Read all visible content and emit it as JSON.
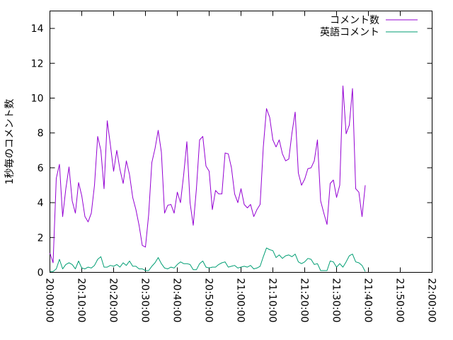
{
  "chart_data": {
    "type": "line",
    "title": "",
    "xlabel": "",
    "ylabel": "1秒毎のコメント数",
    "xlim": [
      0,
      120
    ],
    "ylim": [
      0,
      15
    ],
    "grid": false,
    "legend_position": "top-right",
    "x_ticks": [
      {
        "at": 0,
        "label": "20:00:00"
      },
      {
        "at": 10,
        "label": "20:10:00"
      },
      {
        "at": 20,
        "label": "20:20:00"
      },
      {
        "at": 30,
        "label": "20:30:00"
      },
      {
        "at": 40,
        "label": "20:40:00"
      },
      {
        "at": 50,
        "label": "20:50:00"
      },
      {
        "at": 60,
        "label": "21:00:00"
      },
      {
        "at": 70,
        "label": "21:10:00"
      },
      {
        "at": 80,
        "label": "21:20:00"
      },
      {
        "at": 90,
        "label": "21:30:00"
      },
      {
        "at": 100,
        "label": "21:40:00"
      },
      {
        "at": 110,
        "label": "21:50:00"
      },
      {
        "at": 120,
        "label": "22:00:00"
      }
    ],
    "y_ticks": [
      {
        "at": 0,
        "label": "0"
      },
      {
        "at": 2,
        "label": "2"
      },
      {
        "at": 4,
        "label": "4"
      },
      {
        "at": 6,
        "label": "6"
      },
      {
        "at": 8,
        "label": "8"
      },
      {
        "at": 10,
        "label": "10"
      },
      {
        "at": 12,
        "label": "12"
      },
      {
        "at": 14,
        "label": "14"
      }
    ],
    "series": [
      {
        "name": "コメント数",
        "color": "#9400d3",
        "points": [
          [
            0,
            1.1
          ],
          [
            1,
            0.55
          ],
          [
            2,
            5.4
          ],
          [
            3,
            6.2
          ],
          [
            4,
            3.2
          ],
          [
            5,
            4.8
          ],
          [
            6,
            6.05
          ],
          [
            7,
            4.1
          ],
          [
            8,
            3.4
          ],
          [
            9,
            5.15
          ],
          [
            10,
            4.4
          ],
          [
            11,
            3.2
          ],
          [
            12,
            2.9
          ],
          [
            13,
            3.4
          ],
          [
            14,
            5.0
          ],
          [
            15,
            7.8
          ],
          [
            16,
            7.0
          ],
          [
            17,
            4.8
          ],
          [
            18,
            8.7
          ],
          [
            19,
            7.3
          ],
          [
            20,
            5.8
          ],
          [
            21,
            7.0
          ],
          [
            22,
            5.9
          ],
          [
            23,
            5.1
          ],
          [
            24,
            6.4
          ],
          [
            25,
            5.6
          ],
          [
            26,
            4.3
          ],
          [
            27,
            3.6
          ],
          [
            28,
            2.7
          ],
          [
            29,
            1.55
          ],
          [
            30,
            1.45
          ],
          [
            31,
            3.3
          ],
          [
            32,
            6.3
          ],
          [
            33,
            7.1
          ],
          [
            34,
            8.15
          ],
          [
            35,
            6.9
          ],
          [
            36,
            3.4
          ],
          [
            37,
            3.85
          ],
          [
            38,
            3.9
          ],
          [
            39,
            3.4
          ],
          [
            40,
            4.6
          ],
          [
            41,
            4.0
          ],
          [
            42,
            5.6
          ],
          [
            43,
            7.5
          ],
          [
            44,
            4.0
          ],
          [
            45,
            2.7
          ],
          [
            46,
            4.8
          ],
          [
            47,
            7.6
          ],
          [
            48,
            7.8
          ],
          [
            49,
            6.1
          ],
          [
            50,
            5.8
          ],
          [
            51,
            3.6
          ],
          [
            52,
            4.7
          ],
          [
            53,
            4.5
          ],
          [
            54,
            4.5
          ],
          [
            55,
            6.85
          ],
          [
            56,
            6.8
          ],
          [
            57,
            6.0
          ],
          [
            58,
            4.5
          ],
          [
            59,
            4.0
          ],
          [
            60,
            4.8
          ],
          [
            61,
            3.9
          ],
          [
            62,
            3.7
          ],
          [
            63,
            3.9
          ],
          [
            64,
            3.2
          ],
          [
            65,
            3.6
          ],
          [
            66,
            3.9
          ],
          [
            67,
            7.2
          ],
          [
            68,
            9.4
          ],
          [
            69,
            8.9
          ],
          [
            70,
            7.6
          ],
          [
            71,
            7.2
          ],
          [
            72,
            7.6
          ],
          [
            73,
            6.8
          ],
          [
            74,
            6.4
          ],
          [
            75,
            6.5
          ],
          [
            76,
            8.0
          ],
          [
            77,
            9.2
          ],
          [
            78,
            5.7
          ],
          [
            79,
            5.0
          ],
          [
            80,
            5.35
          ],
          [
            81,
            5.95
          ],
          [
            82,
            6.0
          ],
          [
            83,
            6.4
          ],
          [
            84,
            7.6
          ],
          [
            85,
            4.1
          ],
          [
            86,
            3.4
          ],
          [
            87,
            2.75
          ],
          [
            88,
            5.1
          ],
          [
            89,
            5.3
          ],
          [
            90,
            4.3
          ],
          [
            91,
            5.0
          ],
          [
            92,
            10.7
          ],
          [
            93,
            7.95
          ],
          [
            94,
            8.45
          ],
          [
            95,
            10.55
          ],
          [
            96,
            4.8
          ],
          [
            97,
            4.6
          ],
          [
            98,
            3.2
          ],
          [
            99,
            5.0
          ]
        ]
      },
      {
        "name": "英語コメント",
        "color": "#009e73",
        "points": [
          [
            0,
            0.05
          ],
          [
            1,
            0.05
          ],
          [
            2,
            0.2
          ],
          [
            3,
            0.75
          ],
          [
            4,
            0.2
          ],
          [
            5,
            0.45
          ],
          [
            6,
            0.55
          ],
          [
            7,
            0.45
          ],
          [
            8,
            0.2
          ],
          [
            9,
            0.65
          ],
          [
            10,
            0.25
          ],
          [
            11,
            0.2
          ],
          [
            12,
            0.3
          ],
          [
            13,
            0.25
          ],
          [
            14,
            0.4
          ],
          [
            15,
            0.75
          ],
          [
            16,
            0.9
          ],
          [
            17,
            0.3
          ],
          [
            18,
            0.3
          ],
          [
            19,
            0.4
          ],
          [
            20,
            0.35
          ],
          [
            21,
            0.45
          ],
          [
            22,
            0.3
          ],
          [
            23,
            0.55
          ],
          [
            24,
            0.4
          ],
          [
            25,
            0.65
          ],
          [
            26,
            0.35
          ],
          [
            27,
            0.35
          ],
          [
            28,
            0.2
          ],
          [
            29,
            0.2
          ],
          [
            30,
            0.1
          ],
          [
            31,
            0.1
          ],
          [
            32,
            0.35
          ],
          [
            33,
            0.55
          ],
          [
            34,
            0.85
          ],
          [
            35,
            0.5
          ],
          [
            36,
            0.25
          ],
          [
            37,
            0.2
          ],
          [
            38,
            0.3
          ],
          [
            39,
            0.25
          ],
          [
            40,
            0.45
          ],
          [
            41,
            0.6
          ],
          [
            42,
            0.5
          ],
          [
            43,
            0.5
          ],
          [
            44,
            0.45
          ],
          [
            45,
            0.15
          ],
          [
            46,
            0.15
          ],
          [
            47,
            0.5
          ],
          [
            48,
            0.65
          ],
          [
            49,
            0.3
          ],
          [
            50,
            0.25
          ],
          [
            51,
            0.3
          ],
          [
            52,
            0.3
          ],
          [
            53,
            0.45
          ],
          [
            54,
            0.55
          ],
          [
            55,
            0.6
          ],
          [
            56,
            0.3
          ],
          [
            57,
            0.35
          ],
          [
            58,
            0.4
          ],
          [
            59,
            0.25
          ],
          [
            60,
            0.3
          ],
          [
            61,
            0.35
          ],
          [
            62,
            0.3
          ],
          [
            63,
            0.4
          ],
          [
            64,
            0.2
          ],
          [
            65,
            0.25
          ],
          [
            66,
            0.35
          ],
          [
            67,
            0.9
          ],
          [
            68,
            1.4
          ],
          [
            69,
            1.3
          ],
          [
            70,
            1.25
          ],
          [
            71,
            0.85
          ],
          [
            72,
            1.0
          ],
          [
            73,
            0.8
          ],
          [
            74,
            0.95
          ],
          [
            75,
            1.0
          ],
          [
            76,
            0.9
          ],
          [
            77,
            1.05
          ],
          [
            78,
            0.6
          ],
          [
            79,
            0.5
          ],
          [
            80,
            0.6
          ],
          [
            81,
            0.8
          ],
          [
            82,
            0.75
          ],
          [
            83,
            0.45
          ],
          [
            84,
            0.5
          ],
          [
            85,
            0.1
          ],
          [
            86,
            0.1
          ],
          [
            87,
            0.1
          ],
          [
            88,
            0.65
          ],
          [
            89,
            0.6
          ],
          [
            90,
            0.3
          ],
          [
            91,
            0.5
          ],
          [
            92,
            0.3
          ],
          [
            93,
            0.6
          ],
          [
            94,
            0.95
          ],
          [
            95,
            1.05
          ],
          [
            96,
            0.6
          ],
          [
            97,
            0.55
          ],
          [
            98,
            0.4
          ],
          [
            99,
            0.05
          ]
        ]
      }
    ]
  }
}
